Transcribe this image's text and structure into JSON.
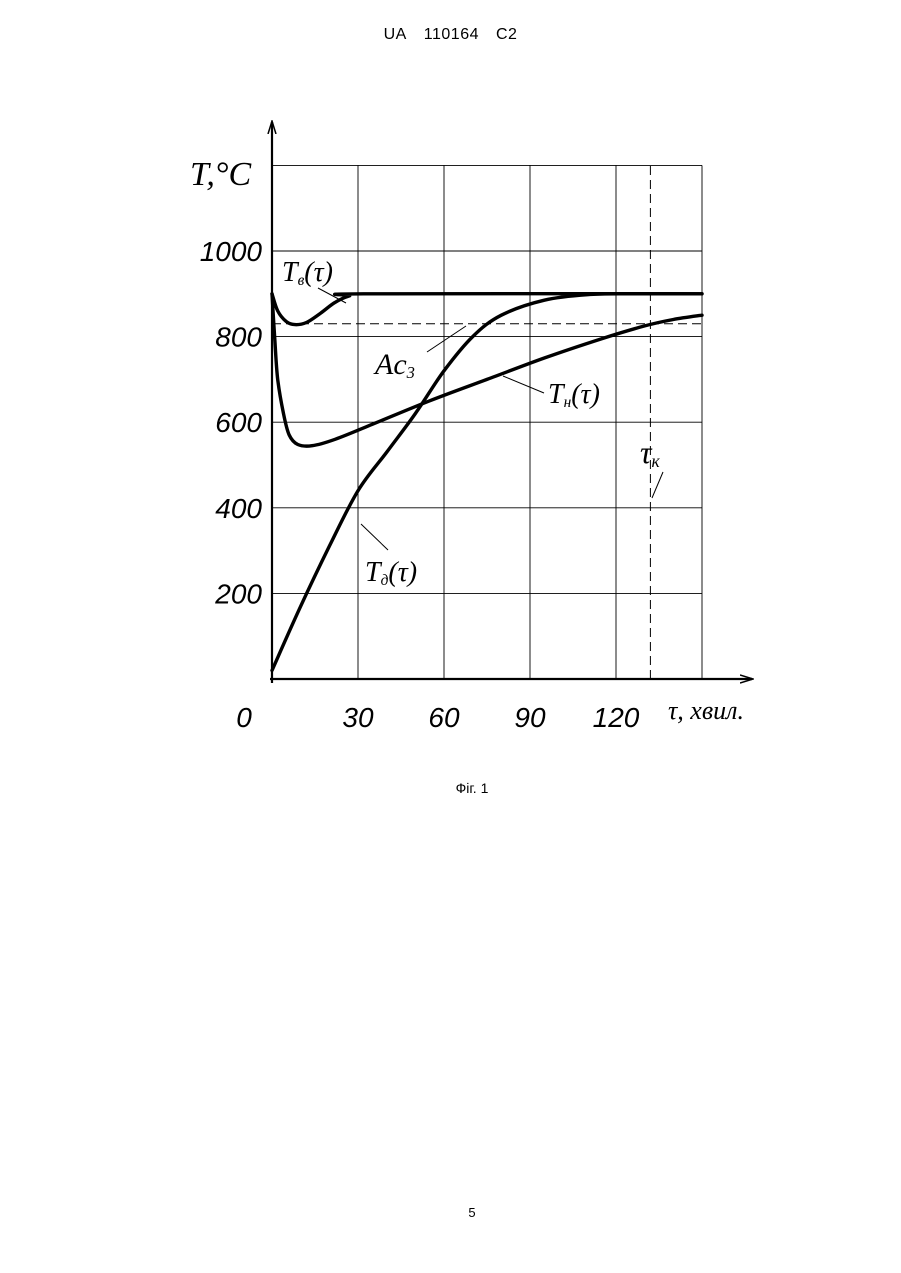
{
  "header": {
    "country": "UA",
    "number": "110164",
    "kind": "C2"
  },
  "caption": "Фіг. 1",
  "page_number": "5",
  "chart_data": {
    "type": "line",
    "title": "",
    "ylabel": "T,°C",
    "xlabel": "τ, хвил.",
    "x_origin_label": "0",
    "xlim": [
      0,
      150
    ],
    "ylim": [
      0,
      1000
    ],
    "y_range_top": 1200,
    "x_ticks": [
      30,
      60,
      90,
      120
    ],
    "x_tick_labels": [
      "30",
      "60",
      "90",
      "120"
    ],
    "y_ticks": [
      200,
      400,
      600,
      800,
      1000
    ],
    "y_tick_labels": [
      "200",
      "400",
      "600",
      "800",
      "1000"
    ],
    "grid": true,
    "legend": "none (inline labels)",
    "series": [
      {
        "name": "Tв(τ)",
        "label_main": "T",
        "label_sub": "в",
        "label_arg": "(τ)",
        "points": [
          [
            0,
            900
          ],
          [
            2,
            860
          ],
          [
            5,
            835
          ],
          [
            8,
            828
          ],
          [
            12,
            833
          ],
          [
            17,
            855
          ],
          [
            22,
            880
          ],
          [
            27,
            895
          ],
          [
            32,
            900
          ],
          [
            150,
            900
          ]
        ]
      },
      {
        "name": "Tн(τ)",
        "label_main": "T",
        "label_sub": "н",
        "label_arg": "(τ)",
        "points": [
          [
            0,
            900
          ],
          [
            1,
            790
          ],
          [
            2,
            700
          ],
          [
            4,
            620
          ],
          [
            6,
            570
          ],
          [
            9,
            548
          ],
          [
            14,
            545
          ],
          [
            22,
            560
          ],
          [
            35,
            595
          ],
          [
            55,
            650
          ],
          [
            75,
            700
          ],
          [
            95,
            750
          ],
          [
            115,
            795
          ],
          [
            130,
            825
          ],
          [
            140,
            840
          ],
          [
            150,
            850
          ]
        ]
      },
      {
        "name": "Tд(τ)",
        "label_main": "T",
        "label_sub": "д",
        "label_arg": "(τ)",
        "points": [
          [
            0,
            20
          ],
          [
            10,
            170
          ],
          [
            20,
            310
          ],
          [
            30,
            440
          ],
          [
            40,
            530
          ],
          [
            50,
            620
          ],
          [
            60,
            720
          ],
          [
            70,
            800
          ],
          [
            80,
            850
          ],
          [
            95,
            885
          ],
          [
            110,
            898
          ],
          [
            125,
            900
          ],
          [
            150,
            900
          ]
        ]
      }
    ],
    "reference_lines": [
      {
        "name": "Ac3",
        "label_main": "Ac",
        "label_sub": "3",
        "orientation": "horizontal",
        "value": 830,
        "style": "dashed"
      },
      {
        "name": "τк",
        "label_main": "τ",
        "label_sub": "к",
        "orientation": "vertical",
        "value": 132,
        "style": "dashed"
      }
    ]
  }
}
